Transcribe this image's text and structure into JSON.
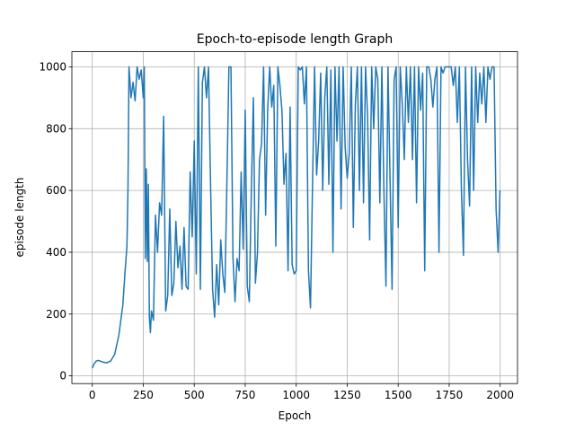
{
  "chart_data": {
    "type": "line",
    "title": "Epoch-to-episode length Graph",
    "xlabel": "Epoch",
    "ylabel": "episode length",
    "x": [
      0,
      10,
      20,
      30,
      50,
      70,
      90,
      110,
      130,
      150,
      160,
      170,
      175,
      180,
      190,
      200,
      210,
      220,
      230,
      240,
      250,
      255,
      260,
      265,
      270,
      275,
      280,
      285,
      290,
      300,
      310,
      320,
      330,
      340,
      350,
      360,
      370,
      380,
      390,
      400,
      410,
      420,
      430,
      440,
      450,
      460,
      470,
      480,
      490,
      500,
      510,
      520,
      530,
      540,
      550,
      560,
      570,
      580,
      590,
      600,
      610,
      620,
      630,
      640,
      650,
      660,
      670,
      680,
      690,
      700,
      710,
      720,
      730,
      740,
      750,
      760,
      770,
      780,
      790,
      800,
      810,
      820,
      830,
      840,
      850,
      860,
      870,
      880,
      890,
      900,
      910,
      920,
      930,
      940,
      950,
      960,
      970,
      980,
      990,
      1000,
      1010,
      1020,
      1030,
      1040,
      1050,
      1060,
      1070,
      1080,
      1090,
      1100,
      1110,
      1120,
      1130,
      1140,
      1150,
      1160,
      1170,
      1180,
      1190,
      1200,
      1210,
      1220,
      1230,
      1240,
      1250,
      1260,
      1270,
      1280,
      1290,
      1300,
      1310,
      1320,
      1330,
      1340,
      1350,
      1360,
      1370,
      1380,
      1390,
      1400,
      1410,
      1420,
      1430,
      1440,
      1450,
      1460,
      1470,
      1480,
      1490,
      1500,
      1510,
      1520,
      1530,
      1540,
      1550,
      1560,
      1570,
      1580,
      1590,
      1600,
      1610,
      1620,
      1630,
      1640,
      1650,
      1660,
      1670,
      1680,
      1690,
      1700,
      1710,
      1720,
      1730,
      1740,
      1750,
      1760,
      1770,
      1780,
      1790,
      1800,
      1810,
      1820,
      1830,
      1840,
      1850,
      1860,
      1870,
      1880,
      1890,
      1900,
      1910,
      1920,
      1930,
      1940,
      1950,
      1960,
      1970,
      1980,
      1990,
      1999
    ],
    "series": [
      {
        "name": "episode length",
        "color": "#1f77b4",
        "values": [
          25,
          40,
          48,
          50,
          45,
          42,
          48,
          70,
          130,
          230,
          330,
          420,
          600,
          1000,
          900,
          950,
          890,
          1000,
          960,
          990,
          900,
          1000,
          380,
          670,
          370,
          620,
          190,
          140,
          210,
          180,
          520,
          400,
          560,
          520,
          840,
          210,
          260,
          540,
          260,
          300,
          500,
          350,
          420,
          280,
          480,
          290,
          280,
          660,
          450,
          760,
          330,
          1000,
          280,
          950,
          1000,
          900,
          1000,
          620,
          280,
          190,
          360,
          230,
          440,
          330,
          270,
          620,
          1000,
          1000,
          380,
          240,
          380,
          340,
          660,
          410,
          860,
          290,
          240,
          600,
          900,
          300,
          400,
          700,
          750,
          1000,
          520,
          860,
          1000,
          870,
          940,
          420,
          1000,
          940,
          860,
          620,
          720,
          340,
          870,
          360,
          330,
          340,
          1000,
          990,
          1000,
          880,
          1000,
          340,
          220,
          620,
          1000,
          650,
          760,
          980,
          600,
          900,
          1000,
          620,
          990,
          400,
          1000,
          760,
          1000,
          540,
          1000,
          740,
          640,
          720,
          1000,
          480,
          880,
          1000,
          600,
          1000,
          560,
          1000,
          840,
          440,
          1000,
          800,
          1000,
          960,
          560,
          1000,
          600,
          290,
          1000,
          640,
          280,
          960,
          1000,
          480,
          1000,
          880,
          700,
          1000,
          820,
          1000,
          700,
          1000,
          560,
          1000,
          860,
          980,
          340,
          1000,
          1000,
          960,
          870,
          960,
          1000,
          400,
          1000,
          980,
          1000,
          1000,
          1000,
          1000,
          940,
          1000,
          820,
          1000,
          600,
          390,
          1000,
          700,
          550,
          1000,
          600,
          1000,
          820,
          980,
          880,
          1000,
          820,
          1000,
          960,
          1000,
          1000,
          540,
          400,
          600
        ]
      }
    ],
    "xlim": [
      -100,
      2085
    ],
    "ylim": [
      -25,
      1049
    ],
    "xticks": [
      0,
      250,
      500,
      750,
      1000,
      1250,
      1500,
      1750,
      2000
    ],
    "yticks": [
      0,
      200,
      400,
      600,
      800,
      1000
    ],
    "grid": true
  }
}
